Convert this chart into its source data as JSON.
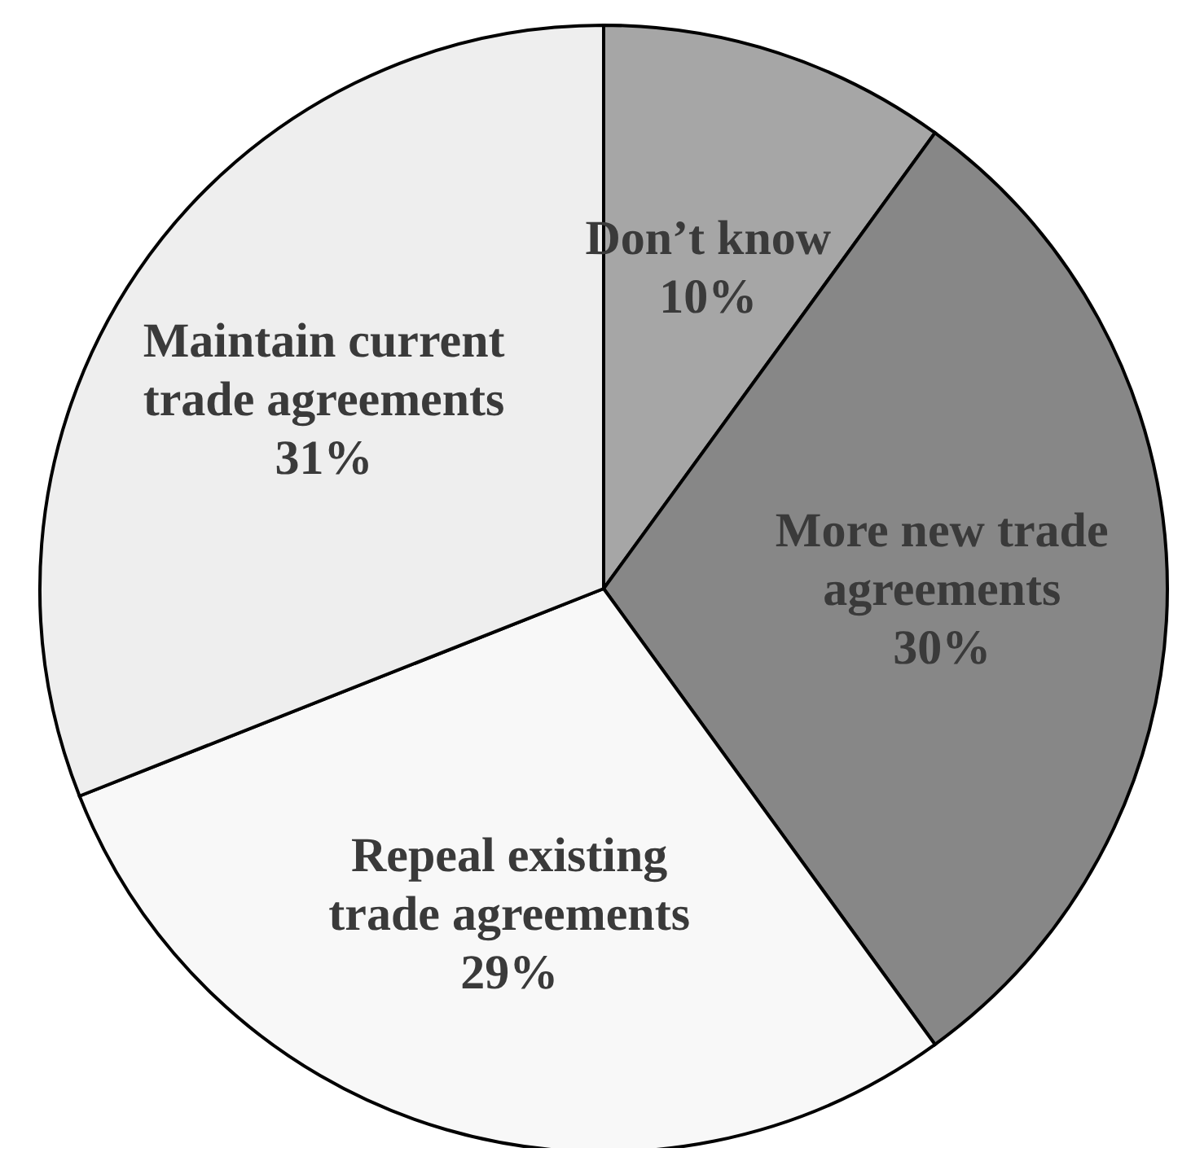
{
  "chart_data": {
    "type": "pie",
    "categories": [
      "Don’t know",
      "More new trade agreements",
      "Repeal existing trade agreements",
      "Maintain current trade agreements"
    ],
    "values": [
      10,
      30,
      29,
      31
    ],
    "value_labels": [
      "10%",
      "30%",
      "29%",
      "31%"
    ],
    "colors": [
      "#a6a6a6",
      "#878787",
      "#f8f8f8",
      "#eeeeee"
    ],
    "legend": false
  }
}
